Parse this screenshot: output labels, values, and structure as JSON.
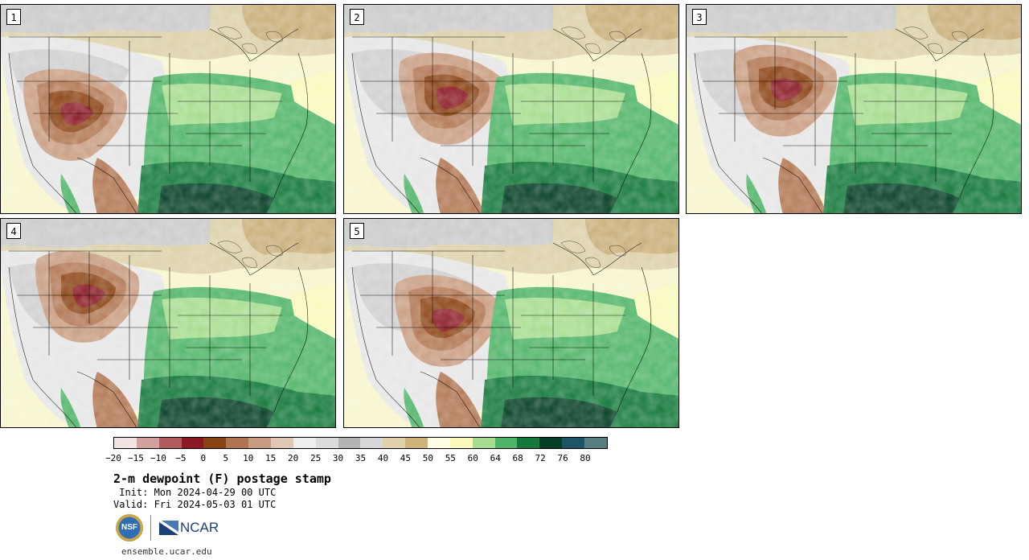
{
  "panels": [
    {
      "label": "1"
    },
    {
      "label": "2"
    },
    {
      "label": "3"
    },
    {
      "label": "4"
    },
    {
      "label": "5"
    }
  ],
  "colorbar": {
    "colors": [
      "#f2e6e4",
      "#d3a0a0",
      "#b25c5e",
      "#8b1a24",
      "#8a4314",
      "#b07550",
      "#c89c80",
      "#e0c6b4",
      "#eeeeee",
      "#dcdcdc",
      "#b4b4b4",
      "#d8d8d8",
      "#dfd2ab",
      "#ceb47a",
      "#ffffe6",
      "#f9f9bc",
      "#a6dc8e",
      "#4fb467",
      "#13783a",
      "#063f25",
      "#1e5566",
      "#55807f"
    ],
    "ticks": [
      "−20",
      "−15",
      "−10",
      "−5",
      "0",
      "5",
      "10",
      "15",
      "20",
      "25",
      "30",
      "35",
      "40",
      "45",
      "50",
      "55",
      "60",
      "64",
      "68",
      "72",
      "76",
      "80"
    ]
  },
  "title": "2-m dewpoint (F) postage stamp",
  "init": " Init: Mon 2024-04-29 00 UTC",
  "valid": "Valid: Fri 2024-05-03 01 UTC",
  "logos": {
    "nsf": "NSF",
    "ncar": "NCAR"
  },
  "footer": "ensemble.ucar.edu"
}
